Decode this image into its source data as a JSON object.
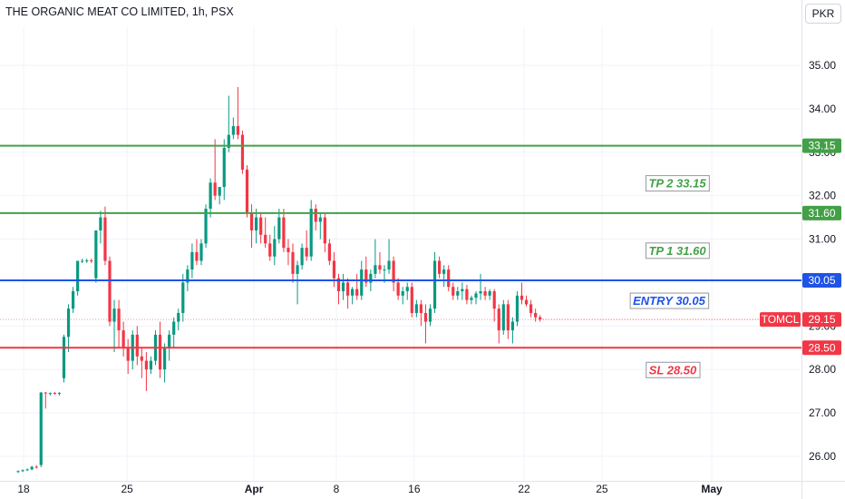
{
  "header": {
    "title": "THE ORGANIC MEAT CO LIMITED, 1h, PSX",
    "currency": "PKR"
  },
  "colors": {
    "up": "#089981",
    "down": "#f23645",
    "tp": "#43a047",
    "entry": "#1e53e5",
    "sl": "#f23645",
    "grid": "#f0f3fa",
    "axis_text": "#131722"
  },
  "chart_data": {
    "type": "candlestick",
    "title": "THE ORGANIC MEAT CO LIMITED, 1h, PSX",
    "ylim": [
      25.63,
      36.1
    ],
    "y_ticks": [
      "35.00",
      "34.00",
      "33.00",
      "32.00",
      "31.00",
      "30.00",
      "29.00",
      "28.00",
      "27.00",
      "26.00"
    ],
    "x_ticks": [
      {
        "label": "18",
        "idx": 1.2
      },
      {
        "label": "25",
        "idx": 23.8
      },
      {
        "label": "Apr",
        "idx": 51.5
      },
      {
        "label": "8",
        "idx": 69.5
      },
      {
        "label": "16",
        "idx": 86.5
      },
      {
        "label": "22",
        "idx": 110.5
      },
      {
        "label": "25",
        "idx": 127.5
      },
      {
        "label": "May",
        "idx": 151.5
      }
    ],
    "candles": [
      [
        25.65,
        25.68,
        25.62,
        25.66
      ],
      [
        25.66,
        25.7,
        25.64,
        25.68
      ],
      [
        25.68,
        25.72,
        25.66,
        25.7
      ],
      [
        25.7,
        25.78,
        25.68,
        25.76
      ],
      [
        25.76,
        25.8,
        25.72,
        25.74
      ],
      [
        25.8,
        27.48,
        25.75,
        27.47
      ],
      [
        27.47,
        27.48,
        27.1,
        27.45
      ],
      [
        27.45,
        27.47,
        27.4,
        27.46
      ],
      [
        27.46,
        27.48,
        27.42,
        27.45
      ],
      [
        27.45,
        27.48,
        27.4,
        27.46
      ],
      [
        27.8,
        28.8,
        27.7,
        28.75
      ],
      [
        28.75,
        29.5,
        28.4,
        29.4
      ],
      [
        29.4,
        29.9,
        29.3,
        29.8
      ],
      [
        29.8,
        30.5,
        29.7,
        30.5
      ],
      [
        30.5,
        30.55,
        30.45,
        30.5
      ],
      [
        30.5,
        30.55,
        30.45,
        30.51
      ],
      [
        30.51,
        30.55,
        30.45,
        30.5
      ],
      [
        30.1,
        31.2,
        30.0,
        31.2
      ],
      [
        31.2,
        31.65,
        30.9,
        31.5
      ],
      [
        31.5,
        31.75,
        30.4,
        30.5
      ],
      [
        30.5,
        30.6,
        29.0,
        29.1
      ],
      [
        29.1,
        29.6,
        28.4,
        29.4
      ],
      [
        29.4,
        29.6,
        28.5,
        28.9
      ],
      [
        28.9,
        29.1,
        28.3,
        28.5
      ],
      [
        28.5,
        28.7,
        27.9,
        28.2
      ],
      [
        28.2,
        28.9,
        28.0,
        28.8
      ],
      [
        28.8,
        29.0,
        28.1,
        28.3
      ],
      [
        28.3,
        28.5,
        27.8,
        28.2
      ],
      [
        28.2,
        28.4,
        27.5,
        28.0
      ],
      [
        28.0,
        28.3,
        27.9,
        28.2
      ],
      [
        28.2,
        28.9,
        28.1,
        28.8
      ],
      [
        28.8,
        29.1,
        27.8,
        28.0
      ],
      [
        28.0,
        28.6,
        27.7,
        28.5
      ],
      [
        28.5,
        28.9,
        28.2,
        28.8
      ],
      [
        28.8,
        29.2,
        28.5,
        29.1
      ],
      [
        29.1,
        29.4,
        28.9,
        29.3
      ],
      [
        29.3,
        30.2,
        29.1,
        30.0
      ],
      [
        30.0,
        30.4,
        29.8,
        30.3
      ],
      [
        30.3,
        30.9,
        30.1,
        30.7
      ],
      [
        30.7,
        31.0,
        30.4,
        30.5
      ],
      [
        30.5,
        31.0,
        30.4,
        30.9
      ],
      [
        30.9,
        31.8,
        30.8,
        31.7
      ],
      [
        31.7,
        32.4,
        31.5,
        32.3
      ],
      [
        32.3,
        33.3,
        31.9,
        32.0
      ],
      [
        32.0,
        32.2,
        31.8,
        32.2
      ],
      [
        32.2,
        33.3,
        31.9,
        33.1
      ],
      [
        33.1,
        34.3,
        33.0,
        33.4
      ],
      [
        33.4,
        33.8,
        33.3,
        33.6
      ],
      [
        33.6,
        34.5,
        33.3,
        33.4
      ],
      [
        33.4,
        33.5,
        32.5,
        32.6
      ],
      [
        32.6,
        32.7,
        31.5,
        31.6
      ],
      [
        31.6,
        31.8,
        30.8,
        31.2
      ],
      [
        31.2,
        31.7,
        30.9,
        31.5
      ],
      [
        31.5,
        31.6,
        30.9,
        31.1
      ],
      [
        31.1,
        31.5,
        30.8,
        30.9
      ],
      [
        30.9,
        31.1,
        30.5,
        30.6
      ],
      [
        30.6,
        31.3,
        30.4,
        31.0
      ],
      [
        31.0,
        31.7,
        30.9,
        31.5
      ],
      [
        31.5,
        31.7,
        30.7,
        30.8
      ],
      [
        30.8,
        31.0,
        30.4,
        30.7
      ],
      [
        30.7,
        30.9,
        30.0,
        30.2
      ],
      [
        30.2,
        30.5,
        29.5,
        30.4
      ],
      [
        30.4,
        30.9,
        30.3,
        30.8
      ],
      [
        30.8,
        31.2,
        30.5,
        30.6
      ],
      [
        30.6,
        31.9,
        30.5,
        31.7
      ],
      [
        31.7,
        31.8,
        31.2,
        31.4
      ],
      [
        31.4,
        31.6,
        31.0,
        31.5
      ],
      [
        31.5,
        31.6,
        30.7,
        30.9
      ],
      [
        30.9,
        31.0,
        30.4,
        30.5
      ],
      [
        30.5,
        30.7,
        29.9,
        30.1
      ],
      [
        30.1,
        30.2,
        29.5,
        29.8
      ],
      [
        29.8,
        30.2,
        29.6,
        30.0
      ],
      [
        30.0,
        30.1,
        29.4,
        29.7
      ],
      [
        29.7,
        29.9,
        29.5,
        29.85
      ],
      [
        29.85,
        30.2,
        29.6,
        29.7
      ],
      [
        29.7,
        30.5,
        29.6,
        30.3
      ],
      [
        30.3,
        30.6,
        29.9,
        30.0
      ],
      [
        30.0,
        30.3,
        29.8,
        30.2
      ],
      [
        30.2,
        31.0,
        30.1,
        30.4
      ],
      [
        30.4,
        30.7,
        30.2,
        30.3
      ],
      [
        30.3,
        30.4,
        30.0,
        30.3
      ],
      [
        30.3,
        31.0,
        30.2,
        30.5
      ],
      [
        30.5,
        30.6,
        29.8,
        30.0
      ],
      [
        30.0,
        30.1,
        29.6,
        29.7
      ],
      [
        29.7,
        29.9,
        29.5,
        29.8
      ],
      [
        29.8,
        30.0,
        29.6,
        29.9
      ],
      [
        29.9,
        30.0,
        29.2,
        29.3
      ],
      [
        29.3,
        29.6,
        29.2,
        29.5
      ],
      [
        29.5,
        29.6,
        29.0,
        29.3
      ],
      [
        29.3,
        29.5,
        28.6,
        29.1
      ],
      [
        29.1,
        29.5,
        29.0,
        29.4
      ],
      [
        29.4,
        30.7,
        29.3,
        30.5
      ],
      [
        30.5,
        30.6,
        30.1,
        30.2
      ],
      [
        30.2,
        30.4,
        29.9,
        30.3
      ],
      [
        30.3,
        30.4,
        29.8,
        29.9
      ],
      [
        29.9,
        30.0,
        29.6,
        29.7
      ],
      [
        29.7,
        29.9,
        29.6,
        29.8
      ],
      [
        29.8,
        30.0,
        29.6,
        29.85
      ],
      [
        29.85,
        29.95,
        29.5,
        29.6
      ],
      [
        29.6,
        29.7,
        29.5,
        29.65
      ],
      [
        29.65,
        29.8,
        29.5,
        29.75
      ],
      [
        29.75,
        30.2,
        29.6,
        29.8
      ],
      [
        29.8,
        29.9,
        29.6,
        29.7
      ],
      [
        29.7,
        29.85,
        29.6,
        29.8
      ],
      [
        29.8,
        29.85,
        29.1,
        29.4
      ],
      [
        29.4,
        29.5,
        28.6,
        28.9
      ],
      [
        28.9,
        29.6,
        28.8,
        29.5
      ],
      [
        29.5,
        29.6,
        28.7,
        28.9
      ],
      [
        28.9,
        29.2,
        28.6,
        29.1
      ],
      [
        29.1,
        29.8,
        29.0,
        29.7
      ],
      [
        29.7,
        30.0,
        29.5,
        29.6
      ],
      [
        29.6,
        29.7,
        29.45,
        29.5
      ],
      [
        29.5,
        29.6,
        29.2,
        29.3
      ],
      [
        29.3,
        29.4,
        29.1,
        29.2
      ],
      [
        29.2,
        29.25,
        29.1,
        29.15
      ]
    ],
    "levels": [
      {
        "name": "TP 2",
        "value": 33.15,
        "label_text": "TP 2 33.15",
        "price_tag": "33.15",
        "color_key": "tp"
      },
      {
        "name": "TP 1",
        "value": 31.6,
        "label_text": "TP 1 31.60",
        "price_tag": "31.60",
        "color_key": "tp"
      },
      {
        "name": "ENTRY",
        "value": 30.05,
        "label_text": "ENTRY 30.05",
        "price_tag": "30.05",
        "color_key": "entry"
      },
      {
        "name": "SL",
        "value": 28.5,
        "label_text": "SL 28.50",
        "price_tag": "28.50",
        "color_key": "sl"
      }
    ],
    "last_price": {
      "symbol": "TOMCL",
      "value": 29.15,
      "tag": "29.15"
    }
  }
}
